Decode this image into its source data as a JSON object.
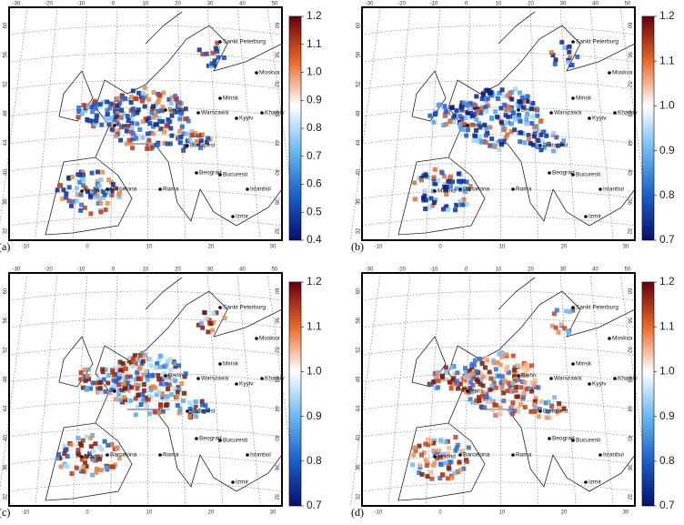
{
  "top_ticks": [
    "-30",
    "-20",
    "-10",
    "0",
    "10",
    "20",
    "30",
    "40",
    "50"
  ],
  "bottom_ticks": [
    "-10",
    "0",
    "10",
    "20",
    "30"
  ],
  "lat_ticks": [
    "32",
    "36",
    "40",
    "44",
    "48",
    "52",
    "56",
    "60"
  ],
  "cities": [
    "Sankt Peterburg",
    "Moskva",
    "Minsk",
    "Warszawa",
    "Kyyiv",
    "Kharkiv",
    "Berlin",
    "Paris",
    "Budapest",
    "Beograd",
    "Bucuresti",
    "Istanbul",
    "Izmir",
    "Madrid",
    "Barcelona",
    "Roma"
  ],
  "panels": [
    {
      "label": "(a)",
      "colorbar_ticks": [
        "1.2",
        "1.1",
        "1.0",
        "0.9",
        "0.8",
        "0.7",
        "0.6",
        "0.5",
        "0.4"
      ]
    },
    {
      "label": "(b)",
      "colorbar_ticks": [
        "1.2",
        "1.1",
        "1.0",
        "0.9",
        "0.8",
        "0.7"
      ]
    },
    {
      "label": "(c)",
      "colorbar_ticks": [
        "1.2",
        "1.1",
        "1.0",
        "0.9",
        "0.8",
        "0.7"
      ]
    },
    {
      "label": "(d)",
      "colorbar_ticks": [
        "1.2",
        "1.1",
        "1.0",
        "0.9",
        "0.8",
        "0.7"
      ]
    }
  ]
}
